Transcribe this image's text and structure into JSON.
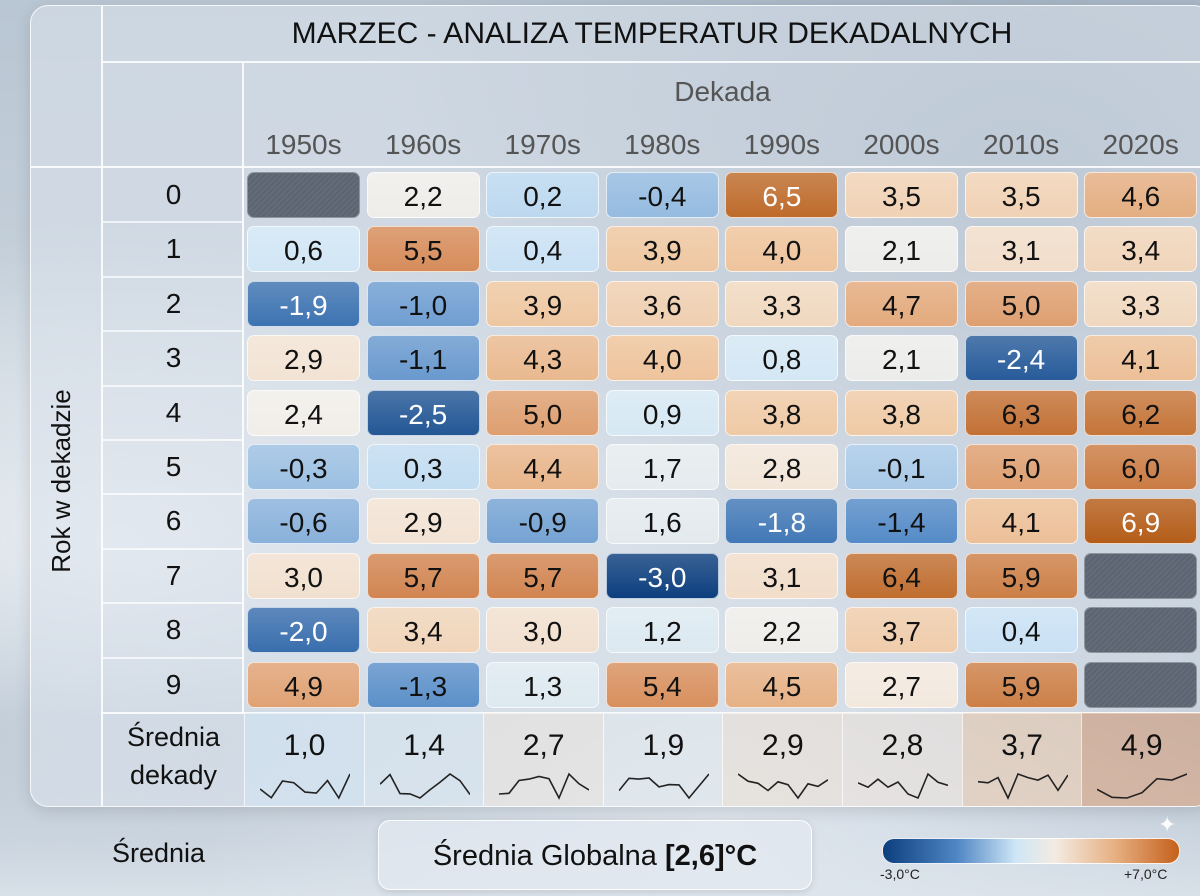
{
  "chart_data": {
    "type": "heatmap",
    "title": "MARZEC - ANALIZA TEMPERATUR DEKADALNYCH",
    "xlabel": "Dekada",
    "ylabel": "Rok w dekadzie",
    "columns": [
      "1950s",
      "1960s",
      "1970s",
      "1980s",
      "1990s",
      "2000s",
      "2010s",
      "2020s"
    ],
    "rows": [
      "0",
      "1",
      "2",
      "3",
      "4",
      "5",
      "6",
      "7",
      "8",
      "9"
    ],
    "values": [
      [
        null,
        "2,2",
        "0,2",
        "-0,4",
        "6,5",
        "3,5",
        "3,5",
        "4,6"
      ],
      [
        "0,6",
        "5,5",
        "0,4",
        "3,9",
        "4,0",
        "2,1",
        "3,1",
        "3,4"
      ],
      [
        "-1,9",
        "-1,0",
        "3,9",
        "3,6",
        "3,3",
        "4,7",
        "5,0",
        "3,3"
      ],
      [
        "2,9",
        "-1,1",
        "4,3",
        "4,0",
        "0,8",
        "2,1",
        "-2,4",
        "4,1"
      ],
      [
        "2,4",
        "-2,5",
        "5,0",
        "0,9",
        "3,8",
        "3,8",
        "6,3",
        "6,2"
      ],
      [
        "-0,3",
        "0,3",
        "4,4",
        "1,7",
        "2,8",
        "-0,1",
        "5,0",
        "6,0"
      ],
      [
        "-0,6",
        "2,9",
        "-0,9",
        "1,6",
        "-1,8",
        "-1,4",
        "4,1",
        "6,9"
      ],
      [
        "3,0",
        "5,7",
        "5,7",
        "-3,0",
        "3,1",
        "6,4",
        "5,9",
        null
      ],
      [
        "-2,0",
        "3,4",
        "3,0",
        "1,2",
        "2,2",
        "3,7",
        "0,4",
        null
      ],
      [
        "4,9",
        "-1,3",
        "1,3",
        "5,4",
        "4,5",
        "2,7",
        "5,9",
        null
      ]
    ],
    "summary_row": {
      "label_line1": "Średnia",
      "label_line2": "dekady",
      "values": [
        "1,0",
        "1,4",
        "2,7",
        "1,9",
        "2,9",
        "2,8",
        "3,7",
        "4,9"
      ]
    },
    "color_scale": {
      "min": -3.0,
      "max": 7.0,
      "min_label": "-3,0°C",
      "max_label": "+7,0°C",
      "colors": [
        "#0d3f7e",
        "#cfe6f6",
        "#f3ebe2",
        "#e7b184",
        "#c5601b"
      ],
      "missing_color": "#5f6874"
    },
    "unit": "°C"
  },
  "footer": {
    "label": "Średnia",
    "global_prefix": "Średnia Globalna ",
    "global_value": "[2,6]°C"
  }
}
